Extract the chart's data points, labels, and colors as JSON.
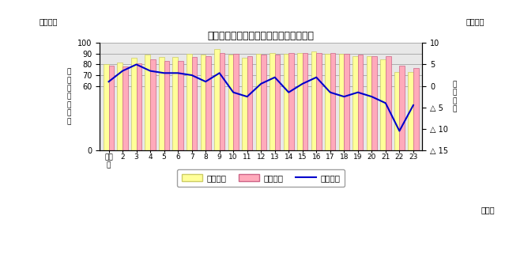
{
  "title": "転入者数、転出者数及び社会動態の推移",
  "year_labels": [
    "平成\n元",
    "2",
    "3",
    "4",
    "5",
    "6",
    "7",
    "8",
    "9",
    "10",
    "11",
    "12",
    "13",
    "14",
    "15",
    "16",
    "17",
    "18",
    "19",
    "20",
    "21",
    "22",
    "23"
  ],
  "tenyu": [
    80,
    82,
    86,
    89,
    87,
    87,
    90,
    89,
    94,
    89,
    86,
    90,
    91,
    90,
    91,
    92,
    90,
    90,
    88,
    88,
    85,
    73,
    73
  ],
  "tenshutu": [
    79,
    78,
    81,
    85,
    83,
    83,
    87,
    88,
    91,
    90,
    88,
    89,
    89,
    91,
    91,
    91,
    91,
    90,
    89,
    88,
    88,
    79,
    77
  ],
  "shakai": [
    1.0,
    3.5,
    5.0,
    3.5,
    3.0,
    3.0,
    2.5,
    1.0,
    3.0,
    -1.5,
    -2.5,
    0.5,
    2.0,
    -1.5,
    0.5,
    2.0,
    -1.5,
    -2.5,
    -1.5,
    -2.5,
    -4.0,
    -10.5,
    -4.5
  ],
  "bar_color_tenyu": "#ffff99",
  "bar_color_tenshutu": "#ffaabb",
  "bar_edge_tenyu": "#cccc66",
  "bar_edge_tenshutu": "#cc6688",
  "line_color": "#0000cc",
  "left_ylim": [
    0,
    100
  ],
  "left_yticks": [
    0,
    60,
    70,
    80,
    90,
    100
  ],
  "right_ylim": [
    -15,
    10
  ],
  "right_yticks": [
    10,
    5,
    0,
    -5,
    -10,
    -15
  ],
  "right_yticklabels": [
    "10",
    "5",
    "0",
    "△ 5",
    "△ 10",
    "△ 15"
  ],
  "left_unit": "（千人）",
  "right_unit": "（千人）",
  "xlabel_right": "（年）",
  "legend_labels": [
    "転入者数",
    "転出者数",
    "社会動態"
  ],
  "left_mid_label": "転\n入\n・\n転\n出\n者\n数",
  "right_mid_label": "社\n会\n動\n態",
  "background_color": "#ffffff",
  "plot_bg_color": "#e8e8e8"
}
